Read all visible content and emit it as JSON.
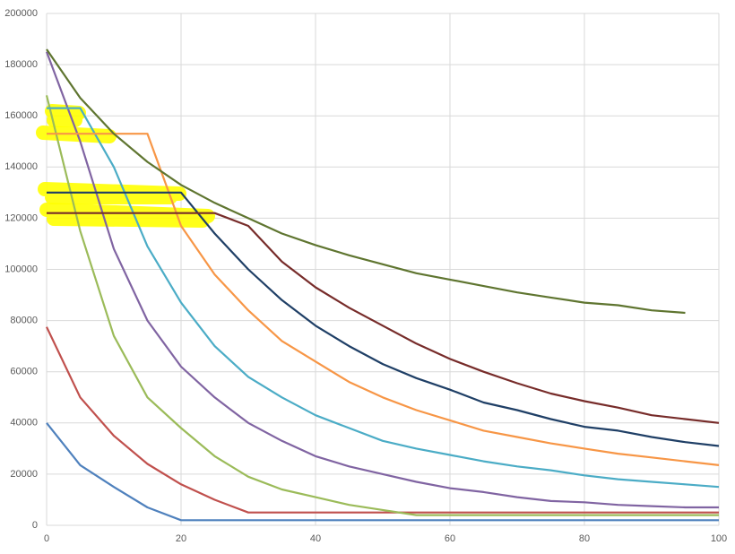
{
  "chart_data": {
    "type": "line",
    "x": [
      0,
      5,
      10,
      15,
      20,
      25,
      30,
      35,
      40,
      45,
      50,
      55,
      60,
      65,
      70,
      75,
      80,
      85,
      90,
      95,
      100
    ],
    "xlim": [
      0,
      100
    ],
    "xticks": [
      0,
      20,
      40,
      60,
      80,
      100
    ],
    "ylim": [
      0,
      200000
    ],
    "yticks": [
      0,
      20000,
      40000,
      60000,
      80000,
      100000,
      120000,
      140000,
      160000,
      180000,
      200000
    ],
    "grid": true,
    "series": [
      {
        "color": "#4f81bd",
        "values": [
          40000,
          23500,
          15000,
          7000,
          2000,
          2000,
          2000,
          2000,
          2000,
          2000,
          2000,
          2000,
          2000,
          2000,
          2000,
          2000,
          2000,
          2000,
          2000,
          2000,
          2000
        ]
      },
      {
        "color": "#c0504d",
        "values": [
          77500,
          50000,
          35000,
          24000,
          16000,
          10000,
          5000,
          5000,
          5000,
          5000,
          5000,
          5000,
          5000,
          5000,
          5000,
          5000,
          5000,
          5000,
          5000,
          5000,
          5000
        ]
      },
      {
        "color": "#9bbb59",
        "values": [
          168000,
          115000,
          74000,
          50000,
          38000,
          27000,
          19000,
          14000,
          11000,
          8000,
          6000,
          4000,
          4000,
          4000,
          4000,
          4000,
          4000,
          4000,
          4000,
          4000,
          4000
        ]
      },
      {
        "color": "#8064a2",
        "values": [
          185000,
          150000,
          108000,
          80000,
          62000,
          50000,
          40000,
          33000,
          27000,
          23000,
          20000,
          17000,
          14500,
          13000,
          11000,
          9500,
          9000,
          8000,
          7500,
          7000,
          7000
        ]
      },
      {
        "color": "#4bacc6",
        "values": [
          163000,
          163000,
          140000,
          109000,
          87000,
          70000,
          58000,
          50000,
          43000,
          38000,
          33000,
          30000,
          27500,
          25000,
          23000,
          21500,
          19500,
          18000,
          17000,
          16000,
          15000
        ]
      },
      {
        "color": "#f79646",
        "values": [
          153000,
          153000,
          153000,
          153000,
          117000,
          98000,
          84000,
          72000,
          64000,
          56000,
          50000,
          45000,
          41000,
          37000,
          34500,
          32000,
          30000,
          28000,
          26500,
          25000,
          23500
        ]
      },
      {
        "color": "#1f3f66",
        "values": [
          130000,
          130000,
          130000,
          130000,
          130000,
          114000,
          100000,
          88000,
          78000,
          70000,
          63000,
          57500,
          53000,
          48000,
          45000,
          41500,
          38500,
          37000,
          34500,
          32500,
          31000
        ]
      },
      {
        "color": "#772c2a",
        "values": [
          122000,
          122000,
          122000,
          122000,
          122000,
          122000,
          117000,
          103000,
          93000,
          85000,
          78000,
          71000,
          65000,
          60000,
          55500,
          51500,
          48500,
          46000,
          43000,
          41500,
          40000
        ]
      },
      {
        "color": "#5f7530",
        "values": [
          186000,
          167000,
          153000,
          142000,
          133000,
          126000,
          120000,
          114000,
          109500,
          105500,
          102000,
          98500,
          96000,
          93500,
          91000,
          89000,
          87000,
          86000,
          84000,
          83000,
          null
        ]
      }
    ]
  }
}
